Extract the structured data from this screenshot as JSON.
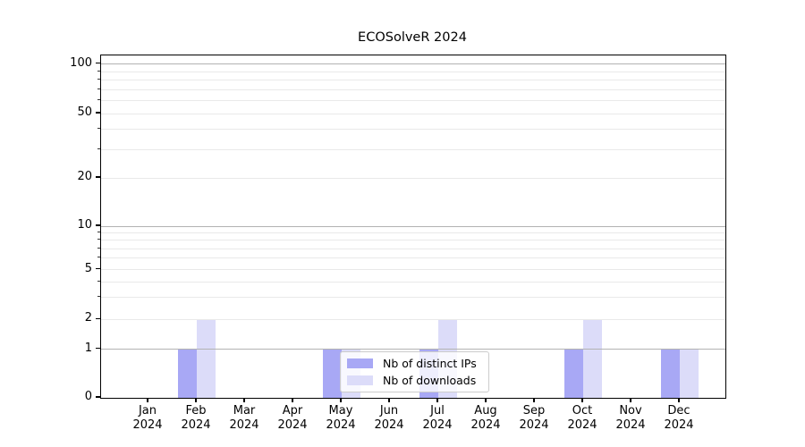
{
  "title": "ECOSolveR 2024",
  "chart_data": {
    "type": "bar",
    "title": "ECOSolveR 2024",
    "categories": [
      "Jan 2024",
      "Feb 2024",
      "Mar 2024",
      "Apr 2024",
      "May 2024",
      "Jun 2024",
      "Jul 2024",
      "Aug 2024",
      "Sep 2024",
      "Oct 2024",
      "Nov 2024",
      "Dec 2024"
    ],
    "series": [
      {
        "name": "Nb of distinct IPs",
        "color": "#a8a8f5",
        "values": [
          0,
          1,
          0,
          0,
          1,
          0,
          1,
          0,
          0,
          1,
          0,
          1
        ]
      },
      {
        "name": "Nb of downloads",
        "color": "#dcdcf9",
        "values": [
          0,
          2,
          0,
          0,
          1,
          0,
          2,
          0,
          0,
          2,
          0,
          1
        ]
      }
    ],
    "xlabel": "",
    "ylabel": "",
    "yscale": "log-like (symlog)",
    "yticks": [
      0,
      1,
      2,
      5,
      10,
      20,
      50,
      100
    ],
    "ylim": [
      0,
      113
    ],
    "grid": "horizontal; major gridlines at 1, 10, 100; minor light gridlines at log subdivisions",
    "legend_position": "lower center"
  },
  "style": {
    "background": "#ffffff",
    "axis_color": "#000000",
    "grid_major_color": "#b2b2b2",
    "grid_minor_color": "#e9e9e9",
    "legend_border_color": "#cccccc"
  }
}
